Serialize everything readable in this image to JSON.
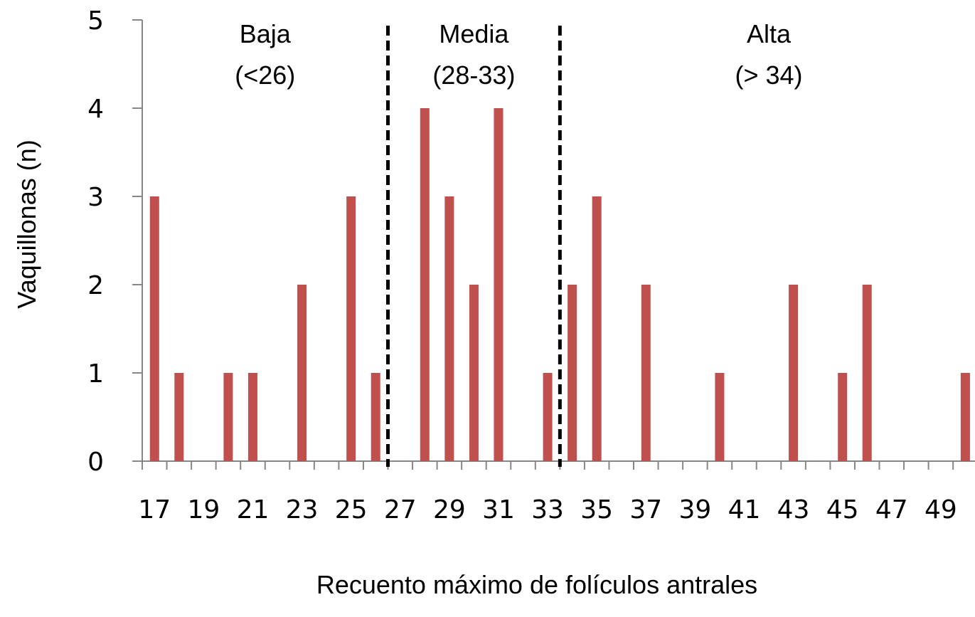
{
  "chart_data": {
    "type": "bar",
    "categories": [
      "17",
      "18",
      "19",
      "20",
      "21",
      "22",
      "23",
      "24",
      "25",
      "26",
      "27",
      "28",
      "29",
      "30",
      "31",
      "32",
      "33",
      "34",
      "35",
      "36",
      "37",
      "38",
      "39",
      "40",
      "41",
      "42",
      "43",
      "44",
      "45",
      "46",
      "47",
      "48",
      "49",
      "50"
    ],
    "values": [
      3,
      1,
      0,
      1,
      1,
      0,
      2,
      0,
      3,
      1,
      0,
      4,
      3,
      2,
      4,
      0,
      1,
      2,
      3,
      0,
      2,
      0,
      0,
      1,
      0,
      0,
      2,
      0,
      1,
      2,
      0,
      0,
      0,
      1
    ],
    "xtick_labels": [
      "17",
      "19",
      "21",
      "23",
      "25",
      "27",
      "29",
      "31",
      "33",
      "35",
      "37",
      "39",
      "41",
      "43",
      "45",
      "47",
      "49"
    ],
    "ytick_labels": [
      "0",
      "1",
      "2",
      "3",
      "4",
      "5"
    ],
    "xlabel": "Recuento máximo de folículos antrales",
    "ylabel": "Vaquillonas (n)",
    "ylim": [
      0,
      5
    ],
    "bar_color": "#C0504D",
    "grid": false,
    "legend": "none",
    "dividers": [
      26.5,
      33.5
    ],
    "groups": [
      {
        "name": "Baja",
        "range": "(<26)"
      },
      {
        "name": "Media",
        "range": "(28-33)"
      },
      {
        "name": "Alta",
        "range": "(> 34)"
      }
    ]
  }
}
